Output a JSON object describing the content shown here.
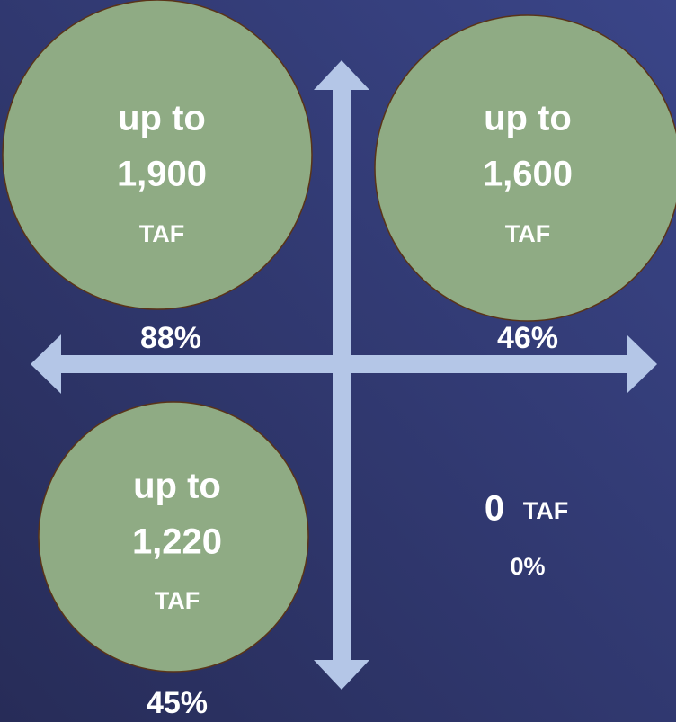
{
  "quadrants": [
    {
      "prefix": "up to",
      "amount": "1,900",
      "unit": "TAF",
      "percent": "88%"
    },
    {
      "prefix": "up to",
      "amount": "1,600",
      "unit": "TAF",
      "percent": "46%"
    },
    {
      "prefix": "up to",
      "amount": "1,220",
      "unit": "TAF",
      "percent": "45%"
    },
    {
      "amount": "0",
      "unit": "TAF",
      "percent": "0%"
    }
  ]
}
